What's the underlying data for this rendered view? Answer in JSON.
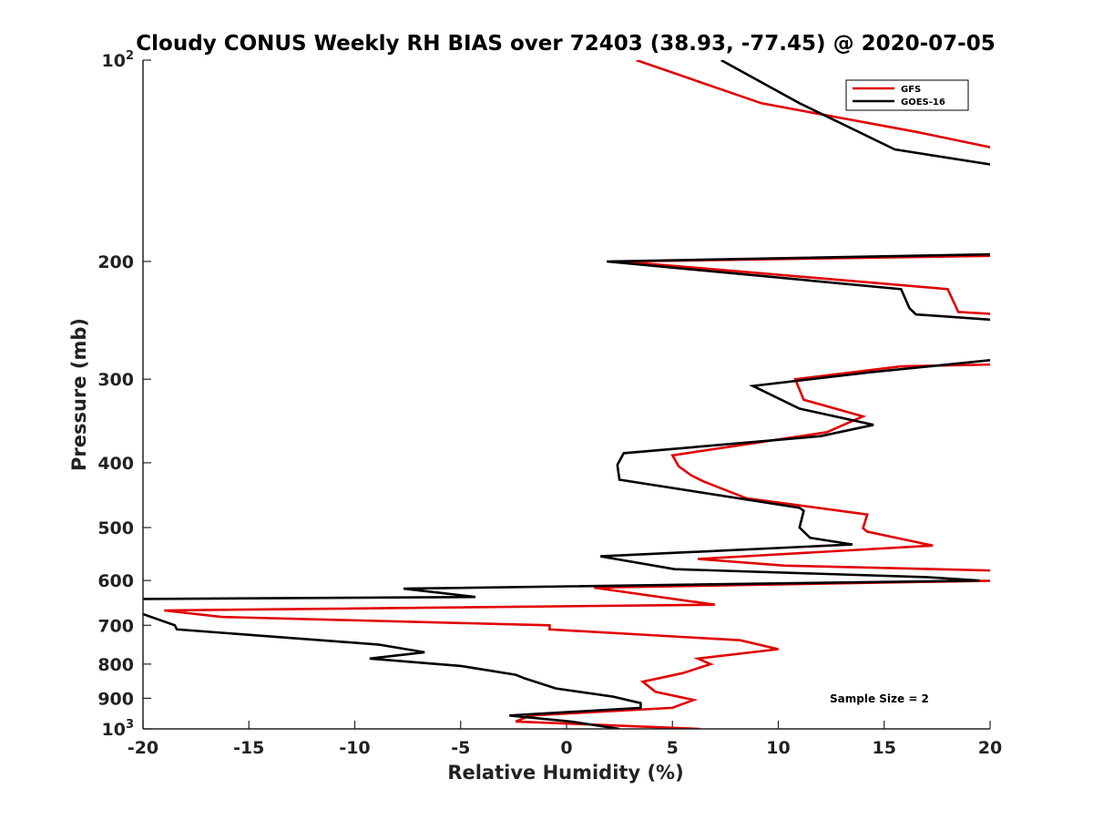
{
  "chart_data": {
    "type": "line",
    "title": "Cloudy CONUS Weekly RH BIAS over 72403 (38.93, -77.45) @ 2020-07-05",
    "xlabel": "Relative Humidity (%)",
    "ylabel": "Pressure (mb)",
    "xlim": [
      -20,
      20
    ],
    "ylim": [
      100,
      1000
    ],
    "y_scale": "log",
    "y_reversed": true,
    "x_ticks": [
      "-20",
      "-15",
      "-10",
      "-5",
      "0",
      "5",
      "10",
      "15",
      "20"
    ],
    "y_ticks": [
      {
        "value": 100,
        "label": "10",
        "sup": "2"
      },
      {
        "value": 200,
        "label": "200"
      },
      {
        "value": 300,
        "label": "300"
      },
      {
        "value": 400,
        "label": "400"
      },
      {
        "value": 500,
        "label": "500"
      },
      {
        "value": 600,
        "label": "600"
      },
      {
        "value": 700,
        "label": "700"
      },
      {
        "value": 800,
        "label": "800"
      },
      {
        "value": 900,
        "label": "900"
      },
      {
        "value": 1000,
        "label": "10",
        "sup": "3"
      }
    ],
    "legend_position": "top-right",
    "annotation": "Sample Size = 2",
    "series": [
      {
        "name": "GFS",
        "color": "#e00000",
        "points": [
          [
            3.3,
            100
          ],
          [
            9.2,
            116
          ],
          [
            16.5,
            128
          ],
          [
            20.5,
            136
          ],
          [
            21.0,
            196
          ],
          [
            2.6,
            200
          ],
          [
            18.0,
            220
          ],
          [
            18.5,
            238
          ],
          [
            20.5,
            240
          ],
          [
            20.5,
            285
          ],
          [
            15.8,
            287
          ],
          [
            10.8,
            300
          ],
          [
            11.2,
            322
          ],
          [
            14.0,
            341
          ],
          [
            12.3,
            360
          ],
          [
            5.0,
            390
          ],
          [
            5.3,
            405
          ],
          [
            5.9,
            418
          ],
          [
            6.5,
            427
          ],
          [
            8.5,
            452
          ],
          [
            14.2,
            478
          ],
          [
            14.0,
            501
          ],
          [
            14.2,
            507
          ],
          [
            17.3,
            532
          ],
          [
            6.2,
            557
          ],
          [
            10.3,
            570
          ],
          [
            20.5,
            580
          ],
          [
            20.5,
            600
          ],
          [
            1.3,
            615
          ],
          [
            7.0,
            652
          ],
          [
            -19.0,
            665
          ],
          [
            -16.3,
            680
          ],
          [
            -0.8,
            700
          ],
          [
            -0.8,
            710
          ],
          [
            8.2,
            737
          ],
          [
            10.0,
            760
          ],
          [
            6.2,
            785
          ],
          [
            6.8,
            800
          ],
          [
            5.5,
            825
          ],
          [
            3.6,
            850
          ],
          [
            4.2,
            880
          ],
          [
            6.0,
            905
          ],
          [
            5.0,
            930
          ],
          [
            -1.7,
            955
          ],
          [
            -2.4,
            975
          ],
          [
            6.3,
            1000
          ]
        ]
      },
      {
        "name": "GOES-16",
        "color": "#000000",
        "points": [
          [
            7.3,
            100
          ],
          [
            11.0,
            116
          ],
          [
            15.5,
            136
          ],
          [
            20.5,
            144
          ],
          [
            20.5,
            195
          ],
          [
            1.9,
            200
          ],
          [
            15.8,
            220
          ],
          [
            16.2,
            235
          ],
          [
            16.5,
            240
          ],
          [
            20.5,
            245
          ],
          [
            20.5,
            280
          ],
          [
            14.3,
            293
          ],
          [
            8.8,
            307
          ],
          [
            11.0,
            332
          ],
          [
            14.5,
            351
          ],
          [
            12.0,
            365
          ],
          [
            2.7,
            387
          ],
          [
            2.4,
            403
          ],
          [
            2.5,
            424
          ],
          [
            11.0,
            467
          ],
          [
            11.2,
            472
          ],
          [
            11.0,
            500
          ],
          [
            11.5,
            518
          ],
          [
            13.5,
            530
          ],
          [
            1.6,
            552
          ],
          [
            5.1,
            577
          ],
          [
            17.0,
            593
          ],
          [
            19.5,
            600
          ],
          [
            -7.7,
            617
          ],
          [
            -4.3,
            635
          ],
          [
            -22.0,
            640
          ],
          [
            -18.5,
            700
          ],
          [
            -18.4,
            710
          ],
          [
            -8.9,
            748
          ],
          [
            -6.7,
            768
          ],
          [
            -9.3,
            785
          ],
          [
            -5.0,
            805
          ],
          [
            -2.4,
            830
          ],
          [
            -2.0,
            840
          ],
          [
            -0.5,
            870
          ],
          [
            2.2,
            895
          ],
          [
            3.5,
            915
          ],
          [
            3.5,
            930
          ],
          [
            -2.7,
            955
          ],
          [
            0.2,
            975
          ],
          [
            2.5,
            1000
          ]
        ]
      }
    ]
  }
}
